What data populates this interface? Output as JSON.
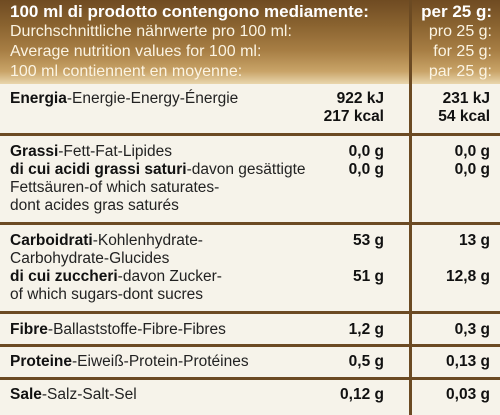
{
  "header": {
    "line1": "100 ml di prodotto contengono mediamente:",
    "line2": "Durchschnittliche nährwerte pro 100 ml:",
    "line3": "Average nutrition values for 100 ml:",
    "line4": "100 ml contiennent en moyenne:",
    "right1": "per 25 g:",
    "right2": "pro 25 g:",
    "right3": "for 25 g:",
    "right4": "par 25 g:"
  },
  "rows": {
    "energia": {
      "bold": "Energia",
      "rest": "-Energie-Energy-Énergie",
      "v100_kj": "922 kJ",
      "v100_kcal": "217 kcal",
      "v25_kj": "231 kJ",
      "v25_kcal": "54 kcal"
    },
    "grassi": {
      "bold": "Grassi",
      "rest": "-Fett-Fat-Lipides",
      "v100": "0,0 g",
      "v25": "0,0 g"
    },
    "saturi": {
      "bold": "di cui acidi grassi saturi",
      "rest": "-davon gesättigte",
      "line2": "Fettsäuren-of which saturates-",
      "line3": "dont acides gras saturés",
      "v100": "0,0 g",
      "v25": "0,0 g"
    },
    "carboidrati": {
      "bold": "Carboidrati",
      "rest": "-Kohlenhydrate-",
      "line2": "Carbohydrate-Glucides",
      "v100": "53 g",
      "v25": "13 g"
    },
    "zuccheri": {
      "bold": "di cui zuccheri",
      "rest": "-davon Zucker-",
      "line2": "of which sugars-dont sucres",
      "v100": "51 g",
      "v25": "12,8 g"
    },
    "fibre": {
      "bold": "Fibre",
      "rest": "-Ballaststoffe-Fibre-Fibres",
      "v100": "1,2 g",
      "v25": "0,3 g"
    },
    "proteine": {
      "bold": "Proteine",
      "rest": "-Eiweiß-Protein-Protéines",
      "v100": "0,5 g",
      "v25": "0,13 g"
    },
    "sale": {
      "bold": "Sale",
      "rest": "-Salz-Salt-Sel",
      "v100": "0,12 g",
      "v25": "0,03 g"
    }
  }
}
